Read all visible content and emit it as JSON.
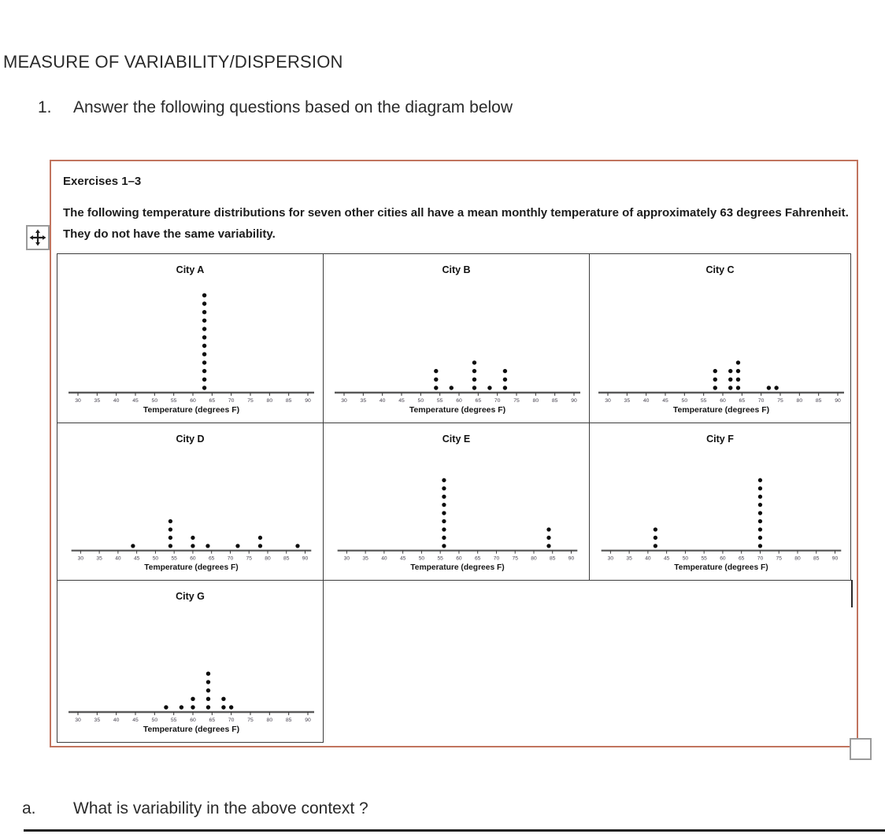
{
  "page": {
    "title": "MEASURE OF VARIABILITY/DISPERSION",
    "question_number": "1.",
    "question_text": "Answer the following questions based on the diagram below",
    "sub_question_label": "a.",
    "sub_question_text": "What is variability in the above context ?"
  },
  "exercise_box": {
    "heading": "Exercises 1–3",
    "description": "The following temperature distributions for seven other cities all have a mean monthly temperature of approximately 63 degrees Fahrenheit.  They do not have the same variability."
  },
  "colors": {
    "exercise_box_border": "#c1745e",
    "grid_border": "#3d3d3d",
    "dot": "#0d0d0d"
  },
  "icons": {
    "move_handle": "move-cross-arrows",
    "resize_handle": "resize-corner-square"
  },
  "chart_data": [
    {
      "type": "dot_plot",
      "title": "City A",
      "xlabel": "Temperature (degrees F)",
      "xlim": [
        30,
        90
      ],
      "x_ticks": [
        30,
        35,
        40,
        45,
        50,
        55,
        60,
        65,
        70,
        75,
        80,
        85,
        90
      ],
      "values": [
        {
          "x": 63,
          "count": 12
        }
      ]
    },
    {
      "type": "dot_plot",
      "title": "City B",
      "xlabel": "Temperature (degrees F)",
      "xlim": [
        30,
        90
      ],
      "x_ticks": [
        30,
        35,
        40,
        45,
        50,
        55,
        60,
        65,
        70,
        75,
        80,
        85,
        90
      ],
      "values": [
        {
          "x": 54,
          "count": 3
        },
        {
          "x": 58,
          "count": 1
        },
        {
          "x": 64,
          "count": 4
        },
        {
          "x": 68,
          "count": 1
        },
        {
          "x": 72,
          "count": 3
        }
      ]
    },
    {
      "type": "dot_plot",
      "title": "City C",
      "xlabel": "Temperature (degrees F)",
      "xlim": [
        30,
        90
      ],
      "x_ticks": [
        30,
        35,
        40,
        45,
        50,
        55,
        60,
        65,
        70,
        75,
        80,
        85,
        90
      ],
      "values": [
        {
          "x": 58,
          "count": 3
        },
        {
          "x": 62,
          "count": 3
        },
        {
          "x": 64,
          "count": 4
        },
        {
          "x": 72,
          "count": 1
        },
        {
          "x": 74,
          "count": 1
        }
      ]
    },
    {
      "type": "dot_plot",
      "title": "City D",
      "xlabel": "Temperature (degrees F)",
      "xlim": [
        30,
        90
      ],
      "x_ticks": [
        30,
        35,
        40,
        45,
        50,
        55,
        60,
        65,
        70,
        75,
        80,
        85,
        90
      ],
      "values": [
        {
          "x": 44,
          "count": 1
        },
        {
          "x": 54,
          "count": 4
        },
        {
          "x": 60,
          "count": 2
        },
        {
          "x": 64,
          "count": 1
        },
        {
          "x": 72,
          "count": 1
        },
        {
          "x": 78,
          "count": 2
        },
        {
          "x": 88,
          "count": 1
        }
      ]
    },
    {
      "type": "dot_plot",
      "title": "City E",
      "xlabel": "Temperature (degrees F)",
      "xlim": [
        30,
        90
      ],
      "x_ticks": [
        30,
        35,
        40,
        45,
        50,
        55,
        60,
        65,
        70,
        75,
        80,
        85,
        90
      ],
      "values": [
        {
          "x": 56,
          "count": 9
        },
        {
          "x": 84,
          "count": 3
        }
      ]
    },
    {
      "type": "dot_plot",
      "title": "City F",
      "xlabel": "Temperature (degrees F)",
      "xlim": [
        30,
        90
      ],
      "x_ticks": [
        30,
        35,
        40,
        45,
        50,
        55,
        60,
        65,
        70,
        75,
        80,
        85,
        90
      ],
      "values": [
        {
          "x": 42,
          "count": 3
        },
        {
          "x": 70,
          "count": 9
        }
      ]
    },
    {
      "type": "dot_plot",
      "title": "City G",
      "xlabel": "Temperature (degrees F)",
      "xlim": [
        30,
        90
      ],
      "x_ticks": [
        30,
        35,
        40,
        45,
        50,
        55,
        60,
        65,
        70,
        75,
        80,
        85,
        90
      ],
      "values": [
        {
          "x": 53,
          "count": 1
        },
        {
          "x": 57,
          "count": 1
        },
        {
          "x": 60,
          "count": 2
        },
        {
          "x": 64,
          "count": 5
        },
        {
          "x": 68,
          "count": 2
        },
        {
          "x": 70,
          "count": 1
        }
      ]
    }
  ]
}
